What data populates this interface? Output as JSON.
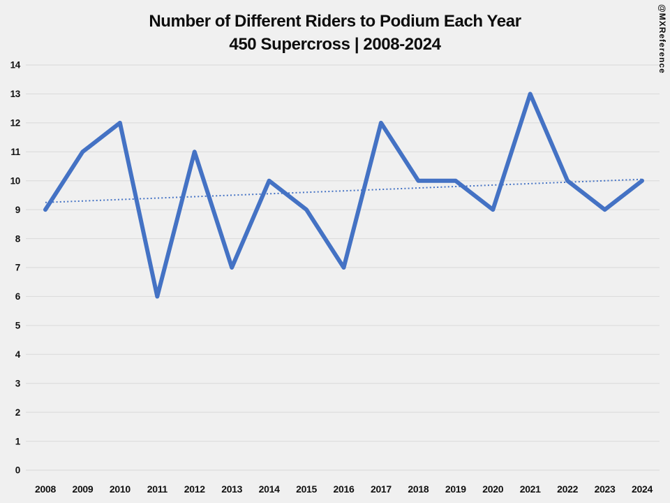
{
  "header": {
    "title": "Number of Different Riders to Podium Each Year",
    "subtitle": "450 Supercross | 2008-2024"
  },
  "watermark": "@MXReference",
  "chart_data": {
    "type": "line",
    "title": "Number of Different Riders to Podium Each Year",
    "subtitle": "450 Supercross | 2008-2024",
    "categories": [
      "2008",
      "2009",
      "2010",
      "2011",
      "2012",
      "2013",
      "2014",
      "2015",
      "2016",
      "2017",
      "2018",
      "2019",
      "2020",
      "2021",
      "2022",
      "2023",
      "2024"
    ],
    "series": [
      {
        "name": "different-riders-to-podium",
        "values": [
          9,
          11,
          12,
          6,
          11,
          7,
          10,
          9,
          7,
          12,
          10,
          10,
          9,
          13,
          10,
          9,
          10
        ]
      }
    ],
    "trendline": {
      "type": "linear",
      "start_value": 9.25,
      "end_value": 10.05,
      "style": "dotted"
    },
    "ylim": [
      0,
      14
    ],
    "ytick_step": 1,
    "grid": true,
    "legend": "none",
    "colors": {
      "line": "#4472C4",
      "trendline": "#4472C4",
      "background": "#F0F0F0",
      "gridline": "#D9D9D9",
      "text": "#111111"
    }
  }
}
